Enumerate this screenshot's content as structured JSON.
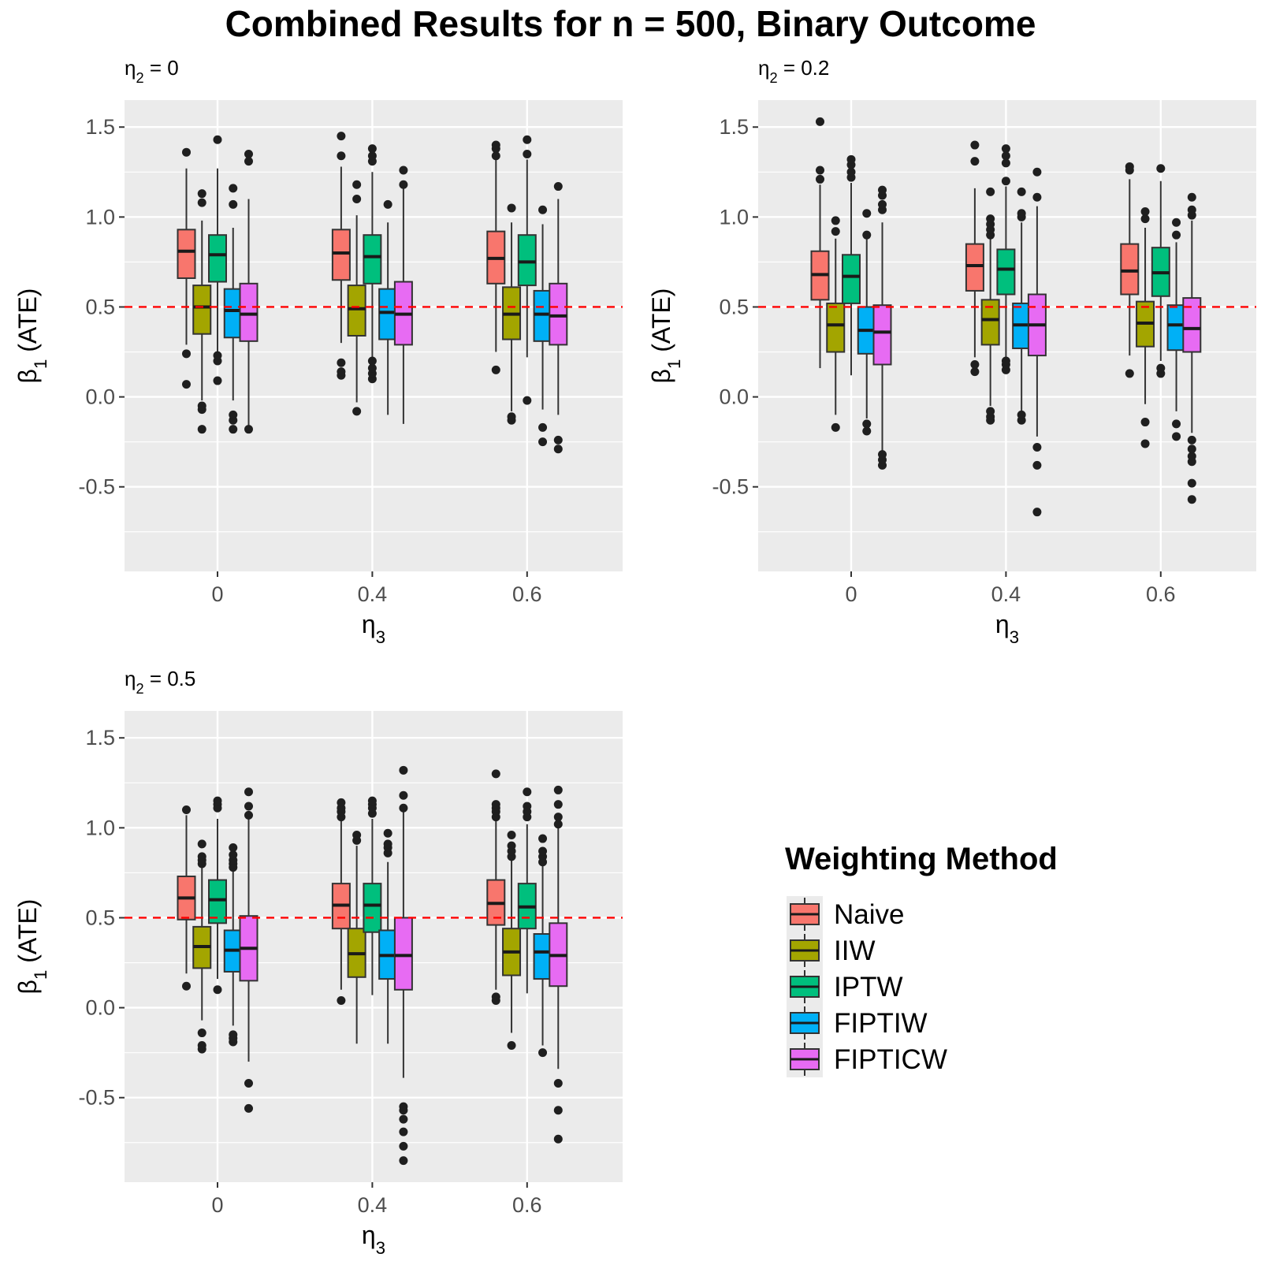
{
  "chart_data": {
    "type": "boxplot",
    "title": "Combined Results for n = 500, Binary Outcome",
    "ylabel_symbol": "β",
    "ylabel_sub": "1",
    "ylabel_text": " (ATE)",
    "xlabel_symbol": "η",
    "xlabel_sub": "3",
    "ylim": [
      -0.97,
      1.65
    ],
    "y_ticks": [
      -0.5,
      0.0,
      0.5,
      1.0,
      1.5
    ],
    "y_tick_labels": [
      "-0.5",
      "0.0",
      "0.5",
      "1.0",
      "1.5"
    ],
    "reference_line": 0.5,
    "categories": [
      "0",
      "0.4",
      "0.6"
    ],
    "legend": {
      "title": "Weighting Method",
      "items": [
        {
          "name": "Naive",
          "color": "#F8766D"
        },
        {
          "name": "IIW",
          "color": "#A3A500"
        },
        {
          "name": "IPTW",
          "color": "#00BF7D"
        },
        {
          "name": "FIPTIW",
          "color": "#00B0F6"
        },
        {
          "name": "FIPTICW",
          "color": "#E76BF3"
        }
      ]
    },
    "panels": [
      {
        "title_symbol": "η",
        "title_sub": "2",
        "title_value": "= 0",
        "groups": [
          [
            {
              "q1": 0.66,
              "median": 0.81,
              "q3": 0.93,
              "wlo": 0.29,
              "whi": 1.27,
              "out": [
                0.07,
                0.24,
                1.36
              ]
            },
            {
              "q1": 0.35,
              "median": 0.5,
              "q3": 0.62,
              "wlo": -0.02,
              "whi": 0.98,
              "out": [
                -0.18,
                -0.07,
                -0.05,
                1.08,
                1.13
              ]
            },
            {
              "q1": 0.64,
              "median": 0.79,
              "q3": 0.9,
              "wlo": 0.25,
              "whi": 1.27,
              "out": [
                0.09,
                0.2,
                0.23,
                1.43
              ]
            },
            {
              "q1": 0.33,
              "median": 0.48,
              "q3": 0.6,
              "wlo": -0.02,
              "whi": 0.94,
              "out": [
                -0.18,
                -0.13,
                -0.1,
                1.07,
                1.16
              ]
            },
            {
              "q1": 0.31,
              "median": 0.46,
              "q3": 0.63,
              "wlo": -0.17,
              "whi": 1.1,
              "out": [
                -0.18,
                1.31,
                1.35
              ]
            }
          ],
          [
            {
              "q1": 0.65,
              "median": 0.8,
              "q3": 0.93,
              "wlo": 0.3,
              "whi": 1.28,
              "out": [
                0.12,
                0.14,
                0.19,
                1.34,
                1.45
              ]
            },
            {
              "q1": 0.34,
              "median": 0.49,
              "q3": 0.62,
              "wlo": -0.03,
              "whi": 1.01,
              "out": [
                -0.08,
                1.1,
                1.18
              ]
            },
            {
              "q1": 0.63,
              "median": 0.78,
              "q3": 0.9,
              "wlo": 0.21,
              "whi": 1.25,
              "out": [
                0.1,
                0.13,
                0.16,
                0.2,
                1.31,
                1.34,
                1.38
              ]
            },
            {
              "q1": 0.32,
              "median": 0.47,
              "q3": 0.6,
              "wlo": -0.1,
              "whi": 0.97,
              "out": [
                1.07
              ]
            },
            {
              "q1": 0.29,
              "median": 0.46,
              "q3": 0.64,
              "wlo": -0.15,
              "whi": 1.16,
              "out": [
                1.18,
                1.26
              ]
            }
          ],
          [
            {
              "q1": 0.63,
              "median": 0.77,
              "q3": 0.92,
              "wlo": 0.25,
              "whi": 1.32,
              "out": [
                0.15,
                1.34,
                1.38,
                1.4
              ]
            },
            {
              "q1": 0.32,
              "median": 0.46,
              "q3": 0.61,
              "wlo": -0.08,
              "whi": 0.97,
              "out": [
                -0.13,
                -0.11,
                1.05
              ]
            },
            {
              "q1": 0.62,
              "median": 0.75,
              "q3": 0.9,
              "wlo": 0.22,
              "whi": 1.32,
              "out": [
                -0.02,
                1.35,
                1.43
              ]
            },
            {
              "q1": 0.31,
              "median": 0.46,
              "q3": 0.59,
              "wlo": -0.07,
              "whi": 0.96,
              "out": [
                -0.25,
                -0.17,
                1.04
              ]
            },
            {
              "q1": 0.29,
              "median": 0.45,
              "q3": 0.63,
              "wlo": -0.1,
              "whi": 1.1,
              "out": [
                -0.29,
                -0.24,
                1.17
              ]
            }
          ]
        ]
      },
      {
        "title_symbol": "η",
        "title_sub": "2",
        "title_value": "= 0.2",
        "groups": [
          [
            {
              "q1": 0.54,
              "median": 0.68,
              "q3": 0.81,
              "wlo": 0.16,
              "whi": 1.18,
              "out": [
                1.21,
                1.26,
                1.53
              ]
            },
            {
              "q1": 0.25,
              "median": 0.4,
              "q3": 0.52,
              "wlo": -0.1,
              "whi": 0.88,
              "out": [
                -0.17,
                0.92,
                0.98
              ]
            },
            {
              "q1": 0.52,
              "median": 0.67,
              "q3": 0.79,
              "wlo": 0.12,
              "whi": 1.19,
              "out": [
                1.22,
                1.25,
                1.29,
                1.32
              ]
            },
            {
              "q1": 0.24,
              "median": 0.37,
              "q3": 0.5,
              "wlo": -0.12,
              "whi": 0.88,
              "out": [
                -0.19,
                -0.15,
                0.9,
                1.02
              ]
            },
            {
              "q1": 0.18,
              "median": 0.36,
              "q3": 0.51,
              "wlo": -0.3,
              "whi": 0.97,
              "out": [
                -0.38,
                -0.35,
                -0.32,
                1.04,
                1.07,
                1.12,
                1.15
              ]
            }
          ],
          [
            {
              "q1": 0.59,
              "median": 0.73,
              "q3": 0.85,
              "wlo": 0.22,
              "whi": 1.16,
              "out": [
                0.14,
                0.18,
                1.31,
                1.4
              ]
            },
            {
              "q1": 0.29,
              "median": 0.43,
              "q3": 0.54,
              "wlo": -0.05,
              "whi": 0.88,
              "out": [
                -0.13,
                -0.11,
                -0.08,
                0.9,
                0.93,
                0.96,
                0.99,
                1.14
              ]
            },
            {
              "q1": 0.57,
              "median": 0.71,
              "q3": 0.82,
              "wlo": 0.21,
              "whi": 1.17,
              "out": [
                0.15,
                0.18,
                0.2,
                1.2,
                1.3,
                1.34,
                1.38
              ]
            },
            {
              "q1": 0.27,
              "median": 0.4,
              "q3": 0.52,
              "wlo": -0.08,
              "whi": 0.97,
              "out": [
                -0.13,
                -0.1,
                1.0,
                1.02,
                1.14
              ]
            },
            {
              "q1": 0.23,
              "median": 0.4,
              "q3": 0.57,
              "wlo": -0.22,
              "whi": 1.06,
              "out": [
                -0.64,
                -0.38,
                -0.28,
                1.11,
                1.25
              ]
            }
          ],
          [
            {
              "q1": 0.57,
              "median": 0.7,
              "q3": 0.85,
              "wlo": 0.23,
              "whi": 1.21,
              "out": [
                0.13,
                1.26,
                1.28
              ]
            },
            {
              "q1": 0.28,
              "median": 0.41,
              "q3": 0.53,
              "wlo": -0.04,
              "whi": 0.94,
              "out": [
                -0.26,
                -0.14,
                0.99,
                1.03
              ]
            },
            {
              "q1": 0.56,
              "median": 0.69,
              "q3": 0.83,
              "wlo": 0.2,
              "whi": 1.2,
              "out": [
                0.13,
                0.16,
                1.27
              ]
            },
            {
              "q1": 0.26,
              "median": 0.4,
              "q3": 0.51,
              "wlo": -0.08,
              "whi": 0.86,
              "out": [
                -0.22,
                -0.15,
                0.9,
                0.97
              ]
            },
            {
              "q1": 0.25,
              "median": 0.38,
              "q3": 0.55,
              "wlo": -0.2,
              "whi": 0.98,
              "out": [
                -0.57,
                -0.48,
                -0.36,
                -0.33,
                -0.29,
                -0.24,
                1.01,
                1.04,
                1.11
              ]
            }
          ]
        ]
      },
      {
        "title_symbol": "η",
        "title_sub": "2",
        "title_value": "= 0.5",
        "groups": [
          [
            {
              "q1": 0.49,
              "median": 0.61,
              "q3": 0.73,
              "wlo": 0.19,
              "whi": 1.07,
              "out": [
                0.12,
                1.1
              ]
            },
            {
              "q1": 0.22,
              "median": 0.34,
              "q3": 0.45,
              "wlo": -0.07,
              "whi": 0.78,
              "out": [
                -0.23,
                -0.21,
                -0.14,
                0.8,
                0.82,
                0.84,
                0.91
              ]
            },
            {
              "q1": 0.47,
              "median": 0.6,
              "q3": 0.71,
              "wlo": 0.16,
              "whi": 1.05,
              "out": [
                0.1,
                1.11,
                1.13,
                1.15
              ]
            },
            {
              "q1": 0.2,
              "median": 0.32,
              "q3": 0.43,
              "wlo": -0.1,
              "whi": 0.76,
              "out": [
                -0.19,
                -0.17,
                -0.15,
                0.78,
                0.8,
                0.82,
                0.85,
                0.89
              ]
            },
            {
              "q1": 0.15,
              "median": 0.33,
              "q3": 0.51,
              "wlo": -0.3,
              "whi": 1.05,
              "out": [
                -0.56,
                -0.42,
                1.07,
                1.12,
                1.2
              ]
            }
          ],
          [
            {
              "q1": 0.44,
              "median": 0.57,
              "q3": 0.69,
              "wlo": 0.1,
              "whi": 1.04,
              "out": [
                0.04,
                1.06,
                1.09,
                1.11,
                1.14
              ]
            },
            {
              "q1": 0.17,
              "median": 0.3,
              "q3": 0.44,
              "wlo": -0.2,
              "whi": 0.9,
              "out": [
                0.93,
                0.96
              ]
            },
            {
              "q1": 0.42,
              "median": 0.57,
              "q3": 0.69,
              "wlo": 0.07,
              "whi": 1.05,
              "out": [
                1.08,
                1.11,
                1.13,
                1.15
              ]
            },
            {
              "q1": 0.16,
              "median": 0.29,
              "q3": 0.43,
              "wlo": -0.2,
              "whi": 0.81,
              "out": [
                0.86,
                0.89,
                0.91,
                0.97
              ]
            },
            {
              "q1": 0.1,
              "median": 0.29,
              "q3": 0.5,
              "wlo": -0.39,
              "whi": 1.1,
              "out": [
                -0.85,
                -0.77,
                -0.69,
                -0.62,
                -0.57,
                -0.55,
                1.11,
                1.18,
                1.32
              ]
            }
          ],
          [
            {
              "q1": 0.46,
              "median": 0.58,
              "q3": 0.71,
              "wlo": 0.1,
              "whi": 1.04,
              "out": [
                0.04,
                0.06,
                1.06,
                1.09,
                1.11,
                1.13,
                1.3
              ]
            },
            {
              "q1": 0.18,
              "median": 0.31,
              "q3": 0.44,
              "wlo": -0.14,
              "whi": 0.82,
              "out": [
                -0.21,
                0.84,
                0.87,
                0.9,
                0.96
              ]
            },
            {
              "q1": 0.44,
              "median": 0.56,
              "q3": 0.69,
              "wlo": 0.08,
              "whi": 1.02,
              "out": [
                1.06,
                1.09,
                1.12,
                1.2
              ]
            },
            {
              "q1": 0.16,
              "median": 0.31,
              "q3": 0.41,
              "wlo": -0.21,
              "whi": 0.79,
              "out": [
                -0.25,
                0.81,
                0.84,
                0.87,
                0.94
              ]
            },
            {
              "q1": 0.12,
              "median": 0.29,
              "q3": 0.47,
              "wlo": -0.34,
              "whi": 1.0,
              "out": [
                -0.73,
                -0.57,
                -0.42,
                1.02,
                1.06,
                1.13,
                1.21
              ]
            }
          ]
        ]
      }
    ]
  }
}
